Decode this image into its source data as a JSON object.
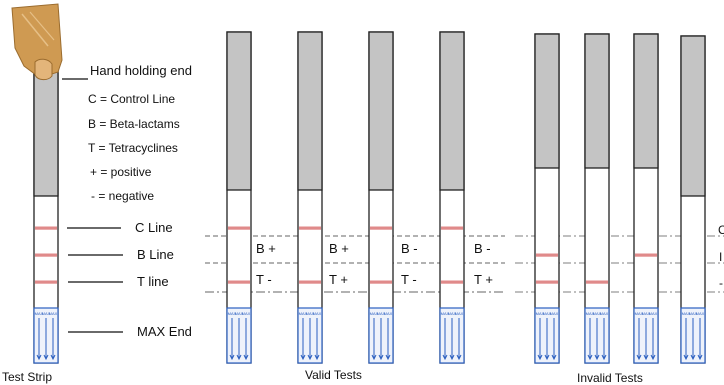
{
  "legend": {
    "hand_holding_end": "Hand holding end",
    "control": "C = Control Line",
    "beta": "B = Beta-lactams",
    "tetra": "T = Tetracyclines",
    "positive": "+  = positive",
    "negative": "- = negative"
  },
  "zone_labels": {
    "c_line": "C Line",
    "b_line": "B Line",
    "t_line": "T line",
    "max_end": "MAX End"
  },
  "captions": {
    "test_strip": "Test Strip",
    "valid_tests": "Valid Tests",
    "invalid_tests": "Invalid Tests"
  },
  "max_arrow_text": "MAX",
  "valid_results": [
    {
      "b": "B +",
      "t": "T -"
    },
    {
      "b": "B +",
      "t": "T +"
    },
    {
      "b": "B -",
      "t": "T -"
    },
    {
      "b": "B -",
      "t": "T +"
    }
  ],
  "invalid_edge_labels": [
    "C",
    "I",
    "-"
  ],
  "colors": {
    "strip_gray": "#c4c4c4",
    "line_red": "#e08a8a",
    "pad_blue": "#2b5fc0",
    "hand": "#cf9a52"
  }
}
